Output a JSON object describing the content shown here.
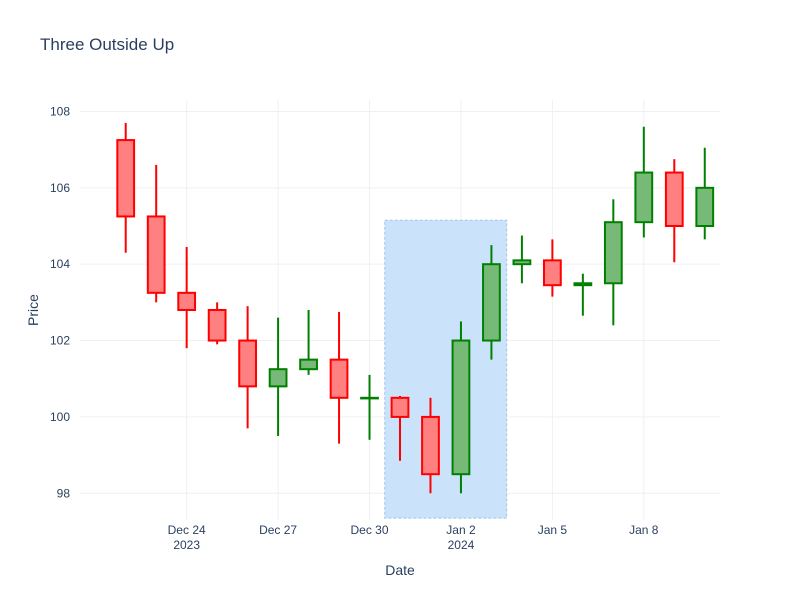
{
  "chart_data": {
    "type": "candlestick",
    "title": "Three Outside Up",
    "xlabel": "Date",
    "ylabel": "Price",
    "ylim": [
      97.3,
      108.3
    ],
    "yticks": [
      98,
      100,
      102,
      104,
      106,
      108
    ],
    "xlim": [
      "2023-12-21",
      "2024-01-10"
    ],
    "xticks": [
      {
        "date": "2023-12-24",
        "label": "Dec 24",
        "sublabel": "2023"
      },
      {
        "date": "2023-12-27",
        "label": "Dec 27",
        "sublabel": ""
      },
      {
        "date": "2023-12-30",
        "label": "Dec 30",
        "sublabel": ""
      },
      {
        "date": "2024-01-02",
        "label": "Jan 2",
        "sublabel": "2024"
      },
      {
        "date": "2024-01-05",
        "label": "Jan 5",
        "sublabel": ""
      },
      {
        "date": "2024-01-08",
        "label": "Jan 8",
        "sublabel": ""
      }
    ],
    "grid": true,
    "colors": {
      "increasing": "#008000",
      "increasing_fill": "#77b977",
      "decreasing": "#ff0000",
      "decreasing_fill": "#ff8080",
      "highlight_fill": "#c7e2fb",
      "highlight_border": "#9fc4ee",
      "grid": "#eef0f4"
    },
    "highlight": {
      "x0": "2023-12-31",
      "x1": "2024-01-04",
      "y0": 97.35,
      "y1": 105.15
    },
    "candles": [
      {
        "date": "2023-12-22",
        "open": 107.25,
        "high": 107.7,
        "low": 104.3,
        "close": 105.25
      },
      {
        "date": "2023-12-23",
        "open": 105.25,
        "high": 106.6,
        "low": 103.0,
        "close": 103.25
      },
      {
        "date": "2023-12-24",
        "open": 103.25,
        "high": 104.45,
        "low": 101.8,
        "close": 102.8
      },
      {
        "date": "2023-12-25",
        "open": 102.8,
        "high": 103.0,
        "low": 101.9,
        "close": 102.0
      },
      {
        "date": "2023-12-26",
        "open": 102.0,
        "high": 102.9,
        "low": 99.7,
        "close": 100.8
      },
      {
        "date": "2023-12-27",
        "open": 100.8,
        "high": 102.6,
        "low": 99.5,
        "close": 101.25
      },
      {
        "date": "2023-12-28",
        "open": 101.25,
        "high": 102.8,
        "low": 101.1,
        "close": 101.5
      },
      {
        "date": "2023-12-29",
        "open": 101.5,
        "high": 102.75,
        "low": 99.3,
        "close": 100.5
      },
      {
        "date": "2023-12-30",
        "open": 100.5,
        "high": 101.1,
        "low": 99.4,
        "close": 100.5
      },
      {
        "date": "2023-12-31",
        "open": 100.5,
        "high": 100.55,
        "low": 98.85,
        "close": 100.0
      },
      {
        "date": "2024-01-01",
        "open": 100.0,
        "high": 100.5,
        "low": 98.0,
        "close": 98.5
      },
      {
        "date": "2024-01-02",
        "open": 98.5,
        "high": 102.5,
        "low": 98.0,
        "close": 102.0
      },
      {
        "date": "2024-01-03",
        "open": 102.0,
        "high": 104.5,
        "low": 101.5,
        "close": 104.0
      },
      {
        "date": "2024-01-04",
        "open": 104.0,
        "high": 104.75,
        "low": 103.5,
        "close": 104.1
      },
      {
        "date": "2024-01-05",
        "open": 104.1,
        "high": 104.65,
        "low": 103.15,
        "close": 103.45
      },
      {
        "date": "2024-01-06",
        "open": 103.45,
        "high": 103.75,
        "low": 102.65,
        "close": 103.5
      },
      {
        "date": "2024-01-07",
        "open": 103.5,
        "high": 105.7,
        "low": 102.4,
        "close": 105.1
      },
      {
        "date": "2024-01-08",
        "open": 105.1,
        "high": 107.6,
        "low": 104.7,
        "close": 106.4
      },
      {
        "date": "2024-01-09",
        "open": 106.4,
        "high": 106.75,
        "low": 104.05,
        "close": 105.0
      },
      {
        "date": "2024-01-10",
        "open": 105.0,
        "high": 107.05,
        "low": 104.65,
        "close": 106.0
      }
    ]
  }
}
